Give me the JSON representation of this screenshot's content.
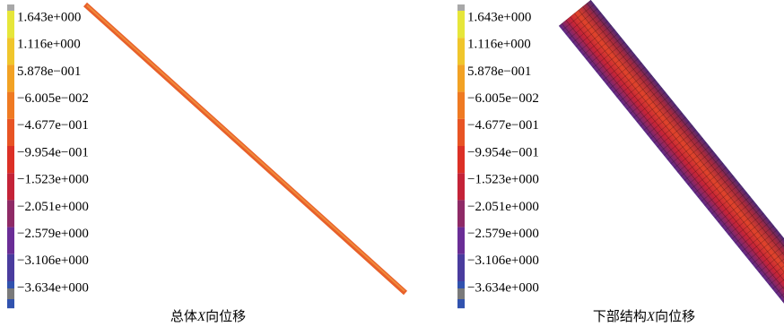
{
  "legend_colors": [
    "#e6e63a",
    "#f0c62c",
    "#f2a224",
    "#ef7a22",
    "#e85424",
    "#dc3026",
    "#c42338",
    "#8e2a66",
    "#6a2d96",
    "#4a3c9e",
    "#3152ae"
  ],
  "panels": [
    {
      "legend": [
        "1.643e+000",
        "1.116e+000",
        "5.878e−001",
        "−6.005e−002",
        "−4.677e−001",
        "−9.954e−001",
        "−1.523e+000",
        "−2.051e+000",
        "−2.579e+000",
        "−3.106e+000",
        "−3.634e+000"
      ],
      "caption": [
        "总体",
        "X",
        "向位移"
      ]
    },
    {
      "legend": [
        "1.643e+000",
        "1.116e+000",
        "5.878e−001",
        "−6.005e−002",
        "−4.677e−001",
        "−9.954e−001",
        "−1.523e+000",
        "−2.051e+000",
        "−2.579e+000",
        "−3.106e+000",
        "−3.634e+000"
      ],
      "caption": [
        "下部结构",
        "X",
        "向位移"
      ]
    }
  ]
}
